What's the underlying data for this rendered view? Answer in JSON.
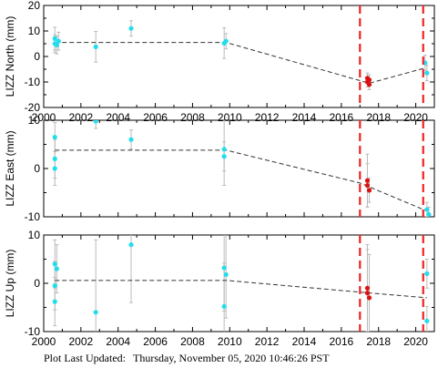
{
  "footer": {
    "label": "Plot Last Updated:",
    "timestamp": "Thursday, November 05, 2020 10:46:26 PST"
  },
  "colors": {
    "observed": "#22ddee",
    "recent": "#dd1111",
    "fit": "#333333",
    "errorbar": "#bbbbbb",
    "event_line": "#ee2222"
  },
  "event_lines_x": [
    2017.0,
    2020.4
  ],
  "chart_data": [
    {
      "type": "scatter",
      "ylabel": "LIZZ North (mm)",
      "xlim": [
        2000,
        2021
      ],
      "ylim": [
        -20,
        20
      ],
      "yticks": [
        -20,
        -10,
        0,
        10,
        20
      ],
      "xticks": [
        2000,
        2002,
        2004,
        2006,
        2008,
        2010,
        2012,
        2014,
        2016,
        2018,
        2020
      ],
      "show_xtick_labels": true,
      "series": [
        {
          "kind": "observed",
          "points": [
            {
              "x": 2000.6,
              "y": 7.0,
              "err": 4.5
            },
            {
              "x": 2000.7,
              "y": 4.5,
              "err": 3.5
            },
            {
              "x": 2000.8,
              "y": 6.0,
              "err": 3.5
            },
            {
              "x": 2000.6,
              "y": 5.0,
              "err": 3.5
            },
            {
              "x": 2002.8,
              "y": 3.8,
              "err": 6.0
            },
            {
              "x": 2004.7,
              "y": 11.0,
              "err": 3.0
            },
            {
              "x": 2009.7,
              "y": 5.2,
              "err": 6.0
            },
            {
              "x": 2009.8,
              "y": 6.0,
              "err": 3.0
            },
            {
              "x": 2020.5,
              "y": -2.5,
              "err": 3.0
            },
            {
              "x": 2020.6,
              "y": -6.5,
              "err": 3.0
            }
          ]
        },
        {
          "kind": "recent",
          "points": [
            {
              "x": 2017.4,
              "y": -8.5,
              "err": 2.0
            },
            {
              "x": 2017.4,
              "y": -10.0,
              "err": 2.0
            },
            {
              "x": 2017.5,
              "y": -9.2,
              "err": 2.0
            },
            {
              "x": 2017.5,
              "y": -11.0,
              "err": 2.0
            }
          ]
        }
      ],
      "fit": {
        "x": [
          2000.6,
          2009.8,
          2017.5,
          2020.5
        ],
        "y": [
          5.5,
          5.5,
          -10.5,
          -4.5
        ]
      }
    },
    {
      "type": "scatter",
      "ylabel": "LIZZ East (mm)",
      "xlim": [
        2000,
        2021
      ],
      "ylim": [
        -10,
        10
      ],
      "yticks": [
        -10,
        0,
        10
      ],
      "xticks": [
        2000,
        2002,
        2004,
        2006,
        2008,
        2010,
        2012,
        2014,
        2016,
        2018,
        2020
      ],
      "show_xtick_labels": false,
      "series": [
        {
          "kind": "observed",
          "points": [
            {
              "x": 2000.6,
              "y": 6.5,
              "err": 3.0
            },
            {
              "x": 2000.6,
              "y": 2.0,
              "err": 4.0
            },
            {
              "x": 2000.6,
              "y": 0.0,
              "err": 3.5
            },
            {
              "x": 2002.8,
              "y": 9.8,
              "err": 1.5
            },
            {
              "x": 2004.7,
              "y": 6.0,
              "err": 2.0
            },
            {
              "x": 2009.7,
              "y": 4.0,
              "err": 7.5
            },
            {
              "x": 2009.7,
              "y": 2.5,
              "err": 3.0
            },
            {
              "x": 2020.6,
              "y": -8.5,
              "err": 1.5
            },
            {
              "x": 2020.7,
              "y": -9.5,
              "err": 1.5
            }
          ]
        },
        {
          "kind": "recent",
          "points": [
            {
              "x": 2017.4,
              "y": -2.5,
              "err": 5.5
            },
            {
              "x": 2017.4,
              "y": -3.5,
              "err": 4.5
            },
            {
              "x": 2017.5,
              "y": -4.5,
              "err": 2.5
            }
          ]
        }
      ],
      "fit": {
        "x": [
          2000.6,
          2009.8,
          2017.0,
          2020.6
        ],
        "y": [
          3.8,
          3.8,
          -3.0,
          -8.8
        ]
      }
    },
    {
      "type": "scatter",
      "ylabel": "LIZZ Up (mm)",
      "xlim": [
        2000,
        2021
      ],
      "ylim": [
        -10,
        10
      ],
      "yticks": [
        -10,
        0,
        10
      ],
      "xticks": [
        2000,
        2002,
        2004,
        2006,
        2008,
        2010,
        2012,
        2014,
        2016,
        2018,
        2020
      ],
      "show_xtick_labels": true,
      "series": [
        {
          "kind": "observed",
          "points": [
            {
              "x": 2000.6,
              "y": 4.0,
              "err": 5.0
            },
            {
              "x": 2000.7,
              "y": 3.0,
              "err": 5.0
            },
            {
              "x": 2000.6,
              "y": -0.5,
              "err": 5.0
            },
            {
              "x": 2000.6,
              "y": -3.8,
              "err": 5.0
            },
            {
              "x": 2002.8,
              "y": -6.0,
              "err": 15.0
            },
            {
              "x": 2004.7,
              "y": 8.0,
              "err": 12.0
            },
            {
              "x": 2009.7,
              "y": 3.2,
              "err": 9.0
            },
            {
              "x": 2009.8,
              "y": 1.8,
              "err": 9.0
            },
            {
              "x": 2009.7,
              "y": -4.8,
              "err": 9.0
            },
            {
              "x": 2020.6,
              "y": 2.0,
              "err": 3.0
            },
            {
              "x": 2020.6,
              "y": -7.8,
              "err": 3.0
            }
          ]
        },
        {
          "kind": "recent",
          "points": [
            {
              "x": 2017.4,
              "y": -1.0,
              "err": 9.0
            },
            {
              "x": 2017.4,
              "y": -2.0,
              "err": 9.0
            },
            {
              "x": 2017.5,
              "y": -3.0,
              "err": 9.0
            }
          ]
        }
      ],
      "fit": {
        "x": [
          2000.6,
          2009.8,
          2017.5,
          2020.6
        ],
        "y": [
          0.6,
          0.6,
          -2.0,
          -3.0
        ]
      }
    }
  ]
}
